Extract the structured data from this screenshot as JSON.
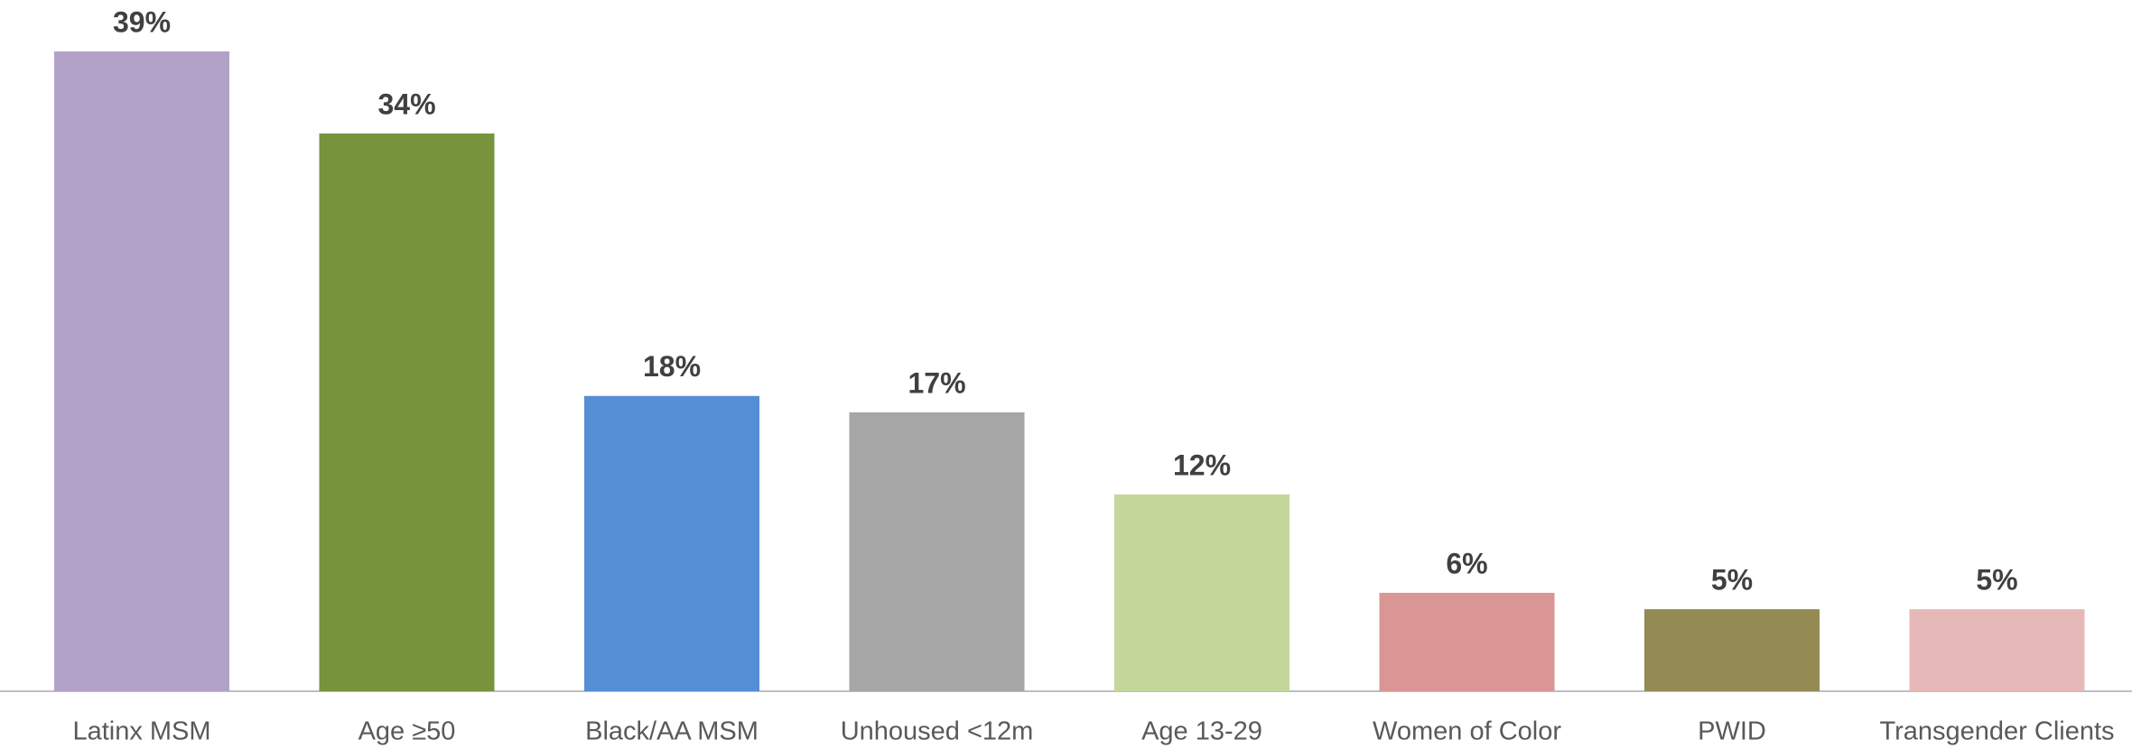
{
  "chart_data": {
    "type": "bar",
    "categories": [
      "Latinx MSM",
      "Age ≥50",
      "Black/AA MSM",
      "Unhoused <12m",
      "Age 13-29",
      "Women of Color",
      "PWID",
      "Transgender Clients"
    ],
    "values": [
      39,
      34,
      18,
      17,
      12,
      6,
      5,
      5
    ],
    "value_labels": [
      "39%",
      "34%",
      "18%",
      "17%",
      "12%",
      "6%",
      "5%",
      "5%"
    ],
    "colors": [
      "#b3a2c8",
      "#77933c",
      "#558ed5",
      "#a6a6a6",
      "#c4d79b",
      "#d99694",
      "#948a54",
      "#e6b9b8"
    ]
  }
}
